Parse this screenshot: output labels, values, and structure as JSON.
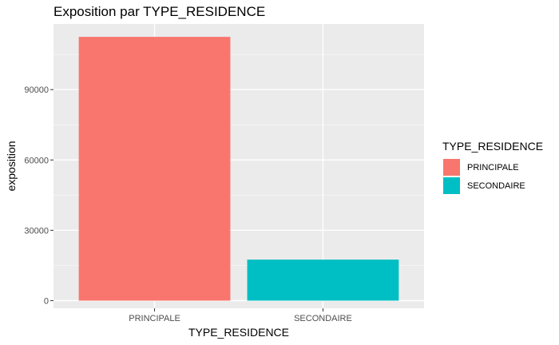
{
  "chart_data": {
    "type": "bar",
    "title": "Exposition par TYPE_RESIDENCE",
    "xlabel": "TYPE_RESIDENCE",
    "ylabel": "exposition",
    "categories": [
      "PRINCIPALE",
      "SECONDAIRE"
    ],
    "values": [
      112500,
      17500
    ],
    "colors": [
      "#F8766D",
      "#00BFC4"
    ],
    "ylim": [
      -3250,
      118000
    ],
    "yticks": [
      0,
      30000,
      60000,
      90000
    ],
    "grid": true,
    "legend": {
      "title": "TYPE_RESIDENCE",
      "position": "right",
      "entries": [
        "PRINCIPALE",
        "SECONDAIRE"
      ]
    }
  }
}
